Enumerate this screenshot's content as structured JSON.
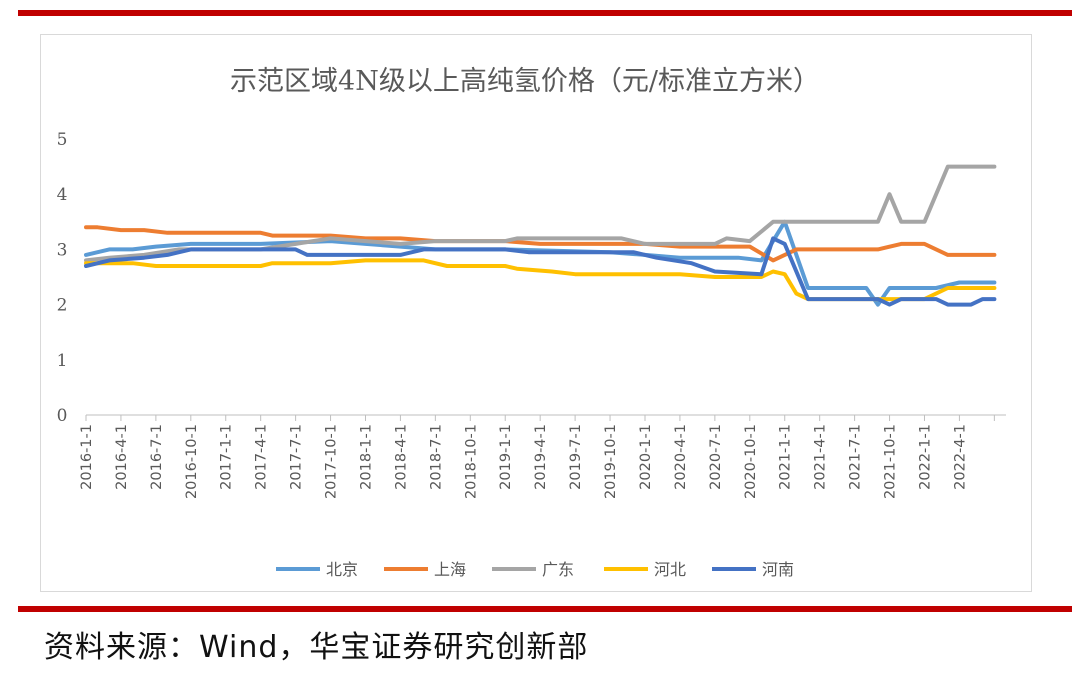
{
  "colors": {
    "frame_bar": "#c00000",
    "series": [
      "#5b9bd5",
      "#ed7d31",
      "#a5a5a5",
      "#ffc000",
      "#4472c4"
    ]
  },
  "source_text": "资料来源：Wind，华宝证券研究创新部",
  "chart_data": {
    "type": "line",
    "title": "示范区域4N级以上高纯氢价格（元/标准立方米）",
    "xlabel": "",
    "ylabel": "",
    "ylim": [
      0,
      5
    ],
    "yticks": [
      "0",
      "1",
      "2",
      "3",
      "4",
      "5"
    ],
    "grid": false,
    "legend_position": "bottom",
    "x_ticks": [
      "2016-1-1",
      "2016-4-1",
      "2016-7-1",
      "2016-10-1",
      "2017-1-1",
      "2017-4-1",
      "2017-7-1",
      "2017-10-1",
      "2018-1-1",
      "2018-4-1",
      "2018-7-1",
      "2018-10-1",
      "2019-1-1",
      "2019-4-1",
      "2019-7-1",
      "2019-10-1",
      "2020-1-1",
      "2020-4-1",
      "2020-7-1",
      "2020-10-1",
      "2021-1-1",
      "2021-4-1",
      "2021-7-1",
      "2021-10-1",
      "2022-1-1",
      "2022-4-1"
    ],
    "x_unit": "month",
    "x_start": "2016-01",
    "series": [
      {
        "name": "北京",
        "points": [
          [
            "2016-01",
            2.9
          ],
          [
            "2016-03",
            3.0
          ],
          [
            "2016-05",
            3.0
          ],
          [
            "2016-07",
            3.05
          ],
          [
            "2016-10",
            3.1
          ],
          [
            "2017-04",
            3.1
          ],
          [
            "2017-10",
            3.15
          ],
          [
            "2018-01",
            3.1
          ],
          [
            "2018-04",
            3.05
          ],
          [
            "2018-07",
            3.0
          ],
          [
            "2019-01",
            3.0
          ],
          [
            "2019-10",
            2.95
          ],
          [
            "2020-01",
            2.9
          ],
          [
            "2020-04",
            2.85
          ],
          [
            "2020-09",
            2.85
          ],
          [
            "2020-11",
            2.8
          ],
          [
            "2021-01",
            3.5
          ],
          [
            "2021-03",
            2.3
          ],
          [
            "2021-08",
            2.3
          ],
          [
            "2021-09",
            2.0
          ],
          [
            "2021-10",
            2.3
          ],
          [
            "2022-02",
            2.3
          ],
          [
            "2022-04",
            2.4
          ],
          [
            "2022-07",
            2.4
          ]
        ]
      },
      {
        "name": "上海",
        "points": [
          [
            "2016-01",
            3.4
          ],
          [
            "2016-02",
            3.4
          ],
          [
            "2016-04",
            3.35
          ],
          [
            "2016-06",
            3.35
          ],
          [
            "2016-08",
            3.3
          ],
          [
            "2017-04",
            3.3
          ],
          [
            "2017-05",
            3.25
          ],
          [
            "2017-10",
            3.25
          ],
          [
            "2018-01",
            3.2
          ],
          [
            "2018-04",
            3.2
          ],
          [
            "2018-07",
            3.15
          ],
          [
            "2019-01",
            3.15
          ],
          [
            "2019-04",
            3.1
          ],
          [
            "2019-10",
            3.1
          ],
          [
            "2020-01",
            3.1
          ],
          [
            "2020-04",
            3.05
          ],
          [
            "2020-10",
            3.05
          ],
          [
            "2020-12",
            2.8
          ],
          [
            "2021-02",
            3.0
          ],
          [
            "2021-04",
            3.0
          ],
          [
            "2021-09",
            3.0
          ],
          [
            "2021-11",
            3.1
          ],
          [
            "2022-01",
            3.1
          ],
          [
            "2022-03",
            2.9
          ],
          [
            "2022-07",
            2.9
          ]
        ]
      },
      {
        "name": "广东",
        "points": [
          [
            "2016-01",
            2.8
          ],
          [
            "2016-03",
            2.85
          ],
          [
            "2016-06",
            2.9
          ],
          [
            "2016-09",
            3.0
          ],
          [
            "2017-04",
            3.0
          ],
          [
            "2017-07",
            3.1
          ],
          [
            "2017-10",
            3.2
          ],
          [
            "2018-01",
            3.15
          ],
          [
            "2018-04",
            3.1
          ],
          [
            "2018-07",
            3.15
          ],
          [
            "2019-01",
            3.15
          ],
          [
            "2019-02",
            3.2
          ],
          [
            "2019-11",
            3.2
          ],
          [
            "2020-01",
            3.1
          ],
          [
            "2020-07",
            3.1
          ],
          [
            "2020-08",
            3.2
          ],
          [
            "2020-10",
            3.15
          ],
          [
            "2020-12",
            3.5
          ],
          [
            "2021-09",
            3.5
          ],
          [
            "2021-10",
            4.0
          ],
          [
            "2021-11",
            3.5
          ],
          [
            "2022-01",
            3.5
          ],
          [
            "2022-03",
            4.5
          ],
          [
            "2022-07",
            4.5
          ]
        ]
      },
      {
        "name": "河北",
        "points": [
          [
            "2016-01",
            2.75
          ],
          [
            "2016-05",
            2.75
          ],
          [
            "2016-07",
            2.7
          ],
          [
            "2017-04",
            2.7
          ],
          [
            "2017-05",
            2.75
          ],
          [
            "2017-10",
            2.75
          ],
          [
            "2018-01",
            2.8
          ],
          [
            "2018-06",
            2.8
          ],
          [
            "2018-08",
            2.7
          ],
          [
            "2019-01",
            2.7
          ],
          [
            "2019-02",
            2.65
          ],
          [
            "2019-05",
            2.6
          ],
          [
            "2019-07",
            2.55
          ],
          [
            "2020-04",
            2.55
          ],
          [
            "2020-07",
            2.5
          ],
          [
            "2020-11",
            2.5
          ],
          [
            "2020-12",
            2.6
          ],
          [
            "2021-01",
            2.55
          ],
          [
            "2021-02",
            2.2
          ],
          [
            "2021-03",
            2.1
          ],
          [
            "2021-09",
            2.1
          ],
          [
            "2022-01",
            2.1
          ],
          [
            "2022-03",
            2.3
          ],
          [
            "2022-07",
            2.3
          ]
        ]
      },
      {
        "name": "河南",
        "points": [
          [
            "2016-01",
            2.7
          ],
          [
            "2016-03",
            2.8
          ],
          [
            "2016-06",
            2.85
          ],
          [
            "2016-08",
            2.9
          ],
          [
            "2016-10",
            3.0
          ],
          [
            "2017-07",
            3.0
          ],
          [
            "2017-08",
            2.9
          ],
          [
            "2018-04",
            2.9
          ],
          [
            "2018-06",
            3.0
          ],
          [
            "2019-01",
            3.0
          ],
          [
            "2019-03",
            2.95
          ],
          [
            "2019-12",
            2.95
          ],
          [
            "2020-02",
            2.85
          ],
          [
            "2020-05",
            2.75
          ],
          [
            "2020-07",
            2.6
          ],
          [
            "2020-11",
            2.55
          ],
          [
            "2020-12",
            3.2
          ],
          [
            "2021-01",
            3.1
          ],
          [
            "2021-03",
            2.1
          ],
          [
            "2021-09",
            2.1
          ],
          [
            "2021-10",
            2.0
          ],
          [
            "2021-11",
            2.1
          ],
          [
            "2022-02",
            2.1
          ],
          [
            "2022-03",
            2.0
          ],
          [
            "2022-05",
            2.0
          ],
          [
            "2022-06",
            2.1
          ],
          [
            "2022-07",
            2.1
          ]
        ]
      }
    ]
  }
}
